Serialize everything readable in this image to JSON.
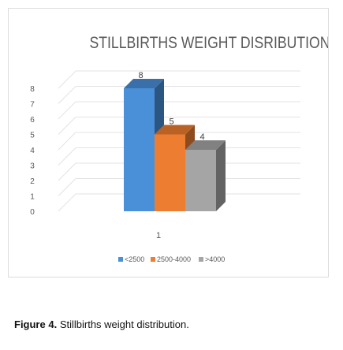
{
  "chart_data": {
    "type": "bar",
    "title": "STILLBIRTHS WEIGHT DISRIBUTION",
    "categories": [
      "1"
    ],
    "series": [
      {
        "name": "<2500",
        "values": [
          8
        ],
        "color": "#4a90d9"
      },
      {
        "name": "2500-4000",
        "values": [
          5
        ],
        "color": "#ed7d31"
      },
      {
        "name": ">4000",
        "values": [
          4
        ],
        "color": "#a5a5a5"
      }
    ],
    "y_ticks": [
      "0",
      "1",
      "2",
      "3",
      "4",
      "5",
      "6",
      "7",
      "8"
    ],
    "ylim": [
      0,
      8
    ],
    "xlabel": "",
    "ylabel": "",
    "grid": true,
    "legend_position": "bottom",
    "style": "3d-clustered-column"
  },
  "caption": {
    "label": "Figure 4.",
    "text": "Stillbirths weight distribution."
  }
}
